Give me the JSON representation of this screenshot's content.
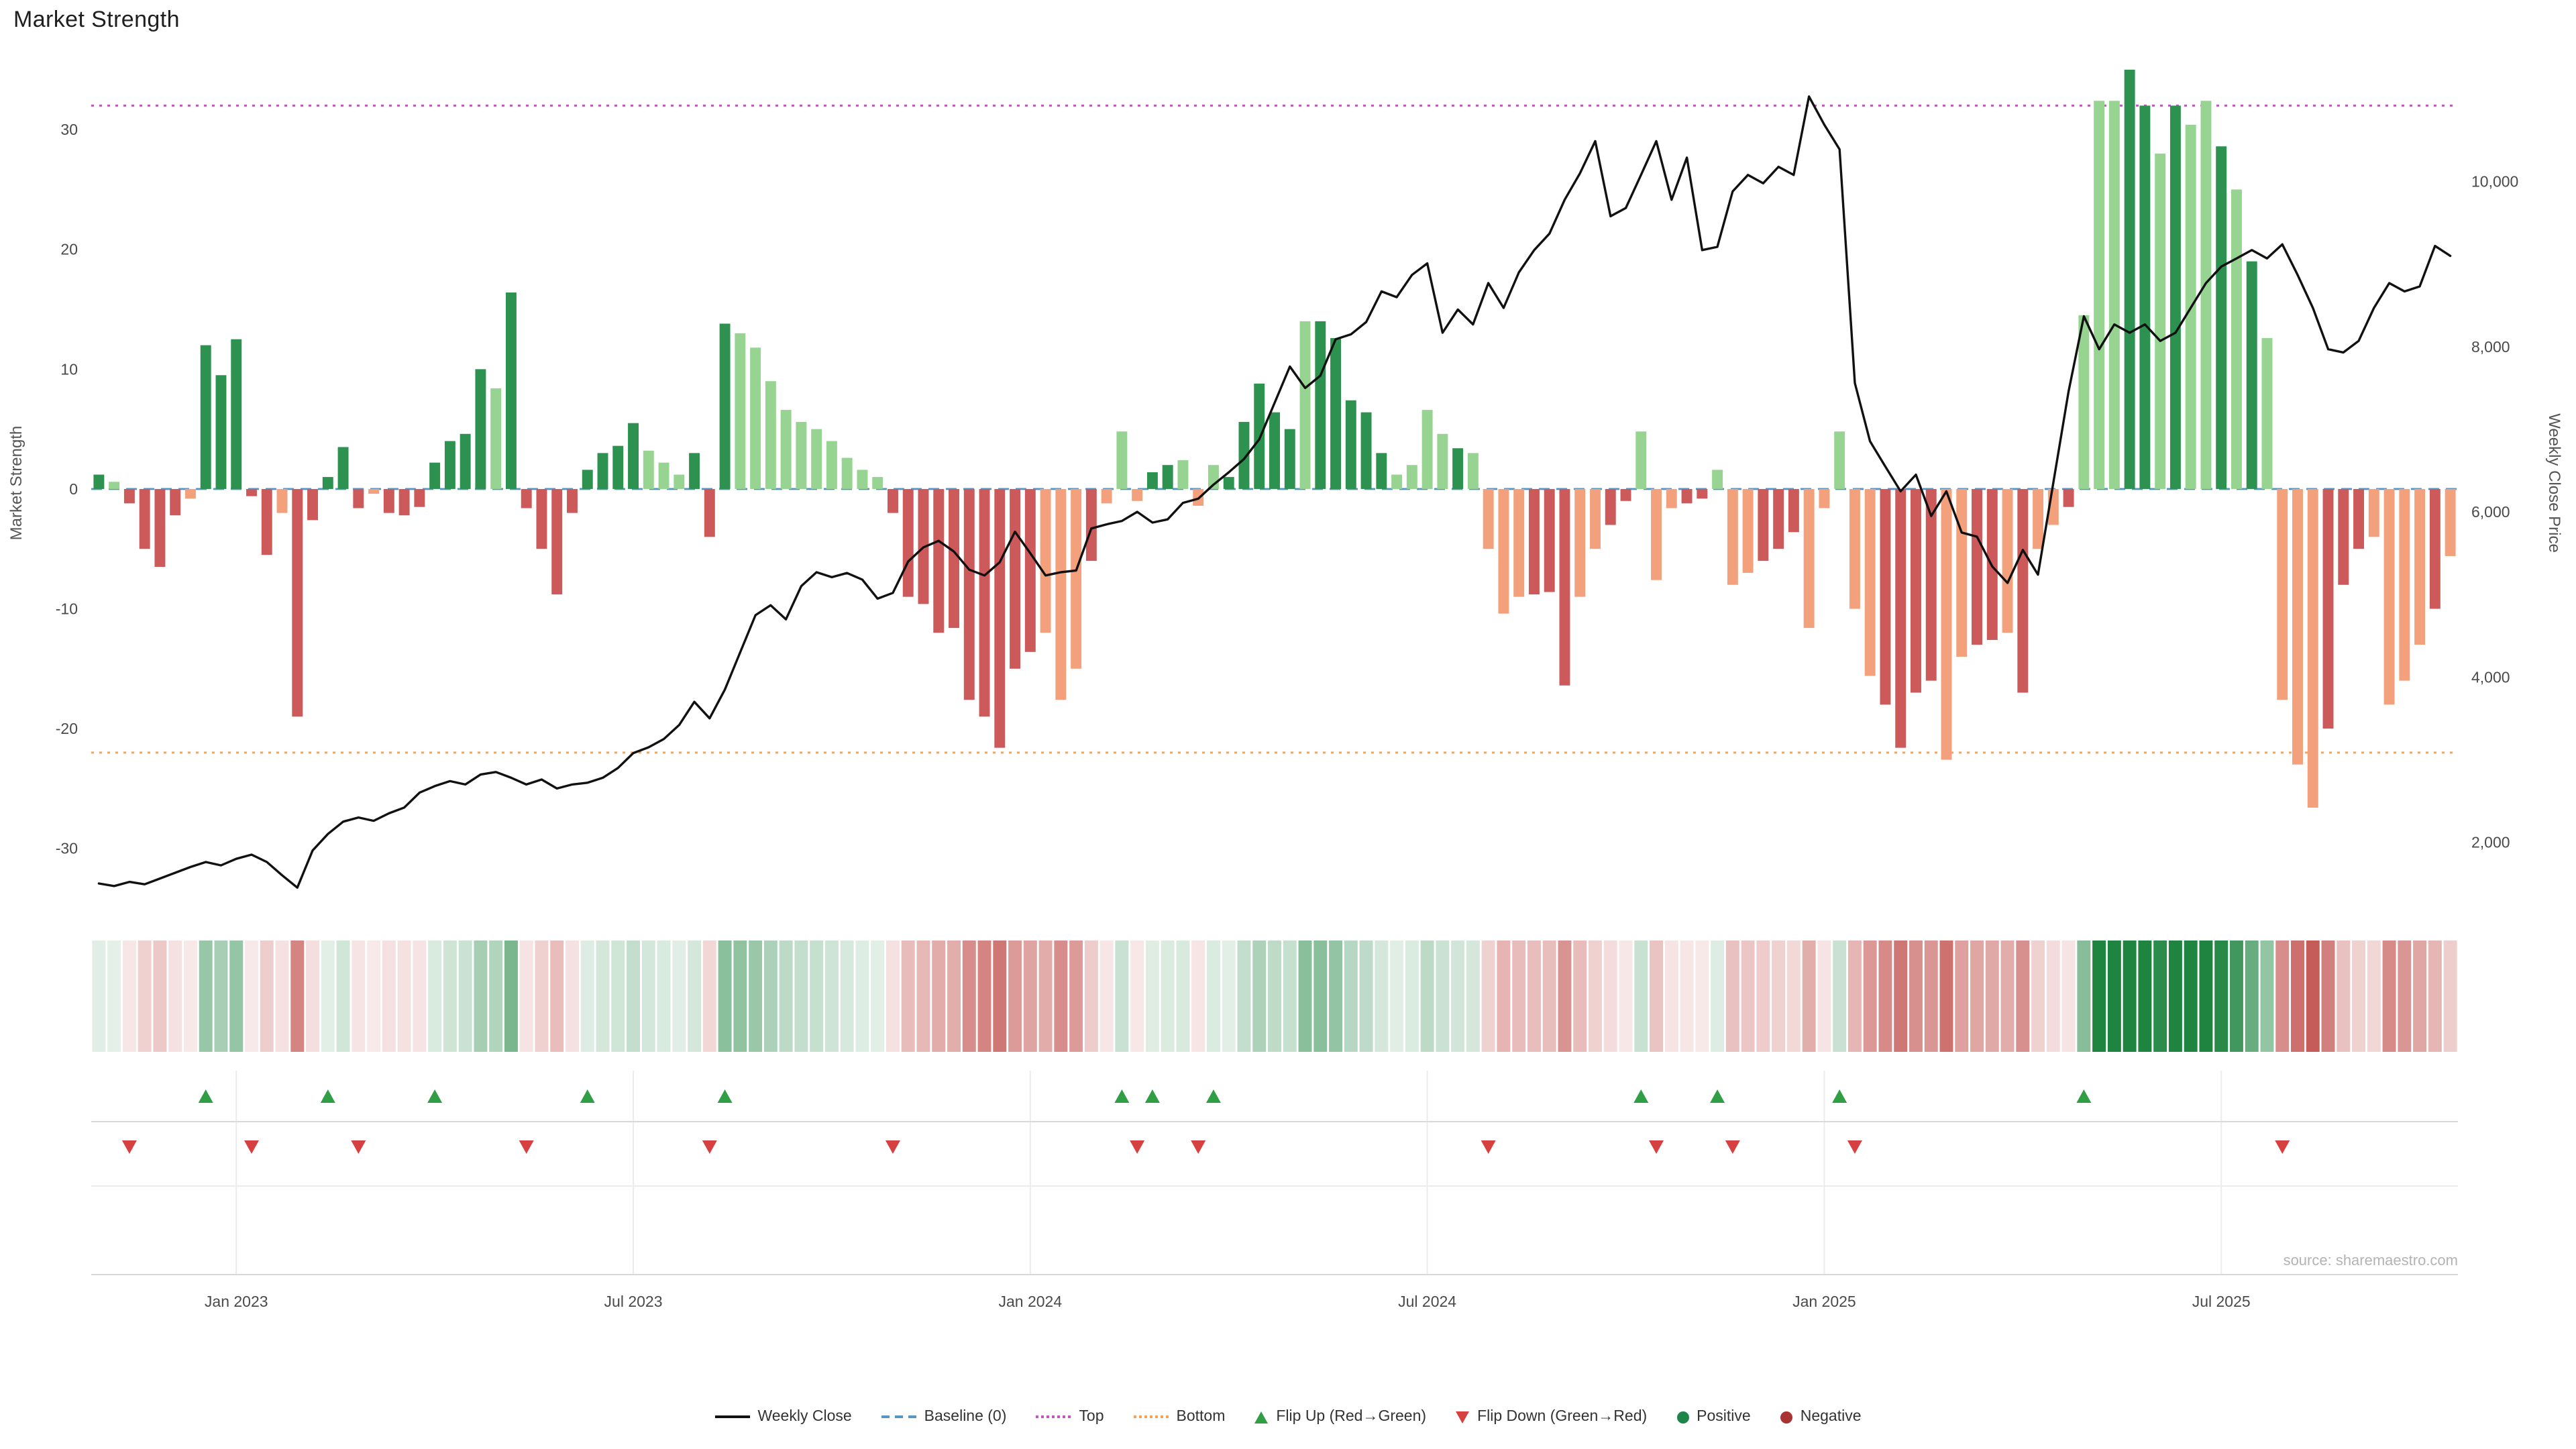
{
  "page": {
    "title": "Market Strength"
  },
  "source_text": "source: sharemaestro.com",
  "colors": {
    "bar_pos_dark": "#2d9150",
    "bar_pos_light": "#97d492",
    "bar_neg_dark": "#cc5a5a",
    "bar_neg_light": "#f2a17c",
    "line": "#111111",
    "baseline": "#5596c8",
    "top": "#c653c6",
    "bottom": "#f5a65b",
    "flip_up": "#2f9e44",
    "flip_down": "#d64040",
    "positive_dot": "#1e8449",
    "negative_dot": "#a93232",
    "grid": "#ececec",
    "panel_line": "#d8d8d8",
    "axis_text": "#4a4a4a",
    "heat_pos_rgb": "26,130,60",
    "heat_neg_rgb": "190,70,66"
  },
  "legend": [
    {
      "label": "Weekly Close",
      "glyph": "line",
      "color": "#111111"
    },
    {
      "label": "Baseline (0)",
      "glyph": "dashed",
      "color": "#5596c8"
    },
    {
      "label": "Top",
      "glyph": "dotted",
      "color": "#c653c6"
    },
    {
      "label": "Bottom",
      "glyph": "dotted",
      "color": "#f5a65b"
    },
    {
      "label": "Flip Up (Red→Green)",
      "glyph": "triangle-up",
      "color": "#2f9e44"
    },
    {
      "label": "Flip Down (Green→Red)",
      "glyph": "triangle-down",
      "color": "#d64040"
    },
    {
      "label": "Positive",
      "glyph": "dot",
      "color": "#1e8449"
    },
    {
      "label": "Negative",
      "glyph": "dot",
      "color": "#a93232"
    }
  ],
  "chart_data": {
    "type": "combo",
    "title": "Market Strength",
    "n_weeks": 155,
    "x_ticks": [
      {
        "i": 9,
        "label": "Jan 2023"
      },
      {
        "i": 35,
        "label": "Jul 2023"
      },
      {
        "i": 61,
        "label": "Jan 2024"
      },
      {
        "i": 87,
        "label": "Jul 2024"
      },
      {
        "i": 113,
        "label": "Jan 2025"
      },
      {
        "i": 139,
        "label": "Jul 2025"
      }
    ],
    "axis_left": {
      "label": "Market Strength",
      "ticks": [
        30,
        20,
        10,
        0,
        -10,
        -20,
        -30
      ],
      "range": [
        -35,
        36
      ]
    },
    "axis_right": {
      "label": "Weekly Close Price",
      "ticks": [
        10000,
        8000,
        6000,
        4000,
        2000
      ],
      "range": [
        1200,
        11500
      ]
    },
    "reference_lines": {
      "baseline": 0,
      "top": 32,
      "bottom": -22
    },
    "legend_position": "bottom",
    "series": [
      {
        "name": "Market Strength",
        "type": "bar",
        "axis": "left",
        "values": [
          1.2,
          0.6,
          -1.2,
          -5,
          -6.5,
          -2.2,
          -0.8,
          12,
          9.5,
          12.5,
          -0.6,
          -5.5,
          -2,
          -19,
          -2.6,
          1,
          3.5,
          -1.6,
          -0.4,
          -2,
          -2.2,
          -1.5,
          2.2,
          4,
          4.6,
          10,
          8.4,
          16.4,
          -1.6,
          -5,
          -8.8,
          -2,
          1.6,
          3,
          3.6,
          5.5,
          3.2,
          2.2,
          1.2,
          3,
          -4,
          13.8,
          13,
          11.8,
          9,
          6.6,
          5.6,
          5,
          4,
          2.6,
          1.6,
          1,
          -2,
          -9,
          -9.6,
          -12,
          -11.6,
          -17.6,
          -19,
          -21.6,
          -15,
          -13.6,
          -12,
          -17.6,
          -15,
          -6,
          -1.2,
          4.8,
          -1,
          1.4,
          2,
          2.4,
          -1.4,
          2,
          1,
          5.6,
          8.8,
          6.4,
          5,
          14,
          14,
          12.6,
          7.4,
          6.4,
          3,
          1.2,
          2,
          6.6,
          4.6,
          3.4,
          3,
          -5,
          -10.4,
          -9,
          -8.8,
          -8.6,
          -16.4,
          -9,
          -5,
          -3,
          -1,
          4.8,
          -7.6,
          -1.6,
          -1.2,
          -0.8,
          1.6,
          -8,
          -7,
          -6,
          -5,
          -3.6,
          -11.6,
          -1.6,
          4.8,
          -10,
          -15.6,
          -18,
          -21.6,
          -17,
          -16,
          -22.6,
          -14,
          -13,
          -12.6,
          -12,
          -17,
          -5,
          -3,
          -1.5,
          14.5,
          32.4,
          32.4,
          35,
          32,
          28,
          32,
          30.4,
          32.4,
          28.6,
          25,
          19,
          12.6,
          -17.6,
          -23,
          -26.6,
          -20,
          -8,
          -5,
          -4,
          -18,
          -16,
          -13,
          -10,
          -5.6
        ]
      },
      {
        "name": "Weekly Close",
        "type": "line",
        "axis": "right",
        "values": [
          1500,
          1470,
          1520,
          1490,
          1560,
          1630,
          1700,
          1760,
          1720,
          1800,
          1850,
          1760,
          1600,
          1450,
          1900,
          2100,
          2250,
          2300,
          2260,
          2350,
          2420,
          2600,
          2680,
          2740,
          2700,
          2820,
          2850,
          2780,
          2700,
          2760,
          2650,
          2700,
          2720,
          2780,
          2900,
          3080,
          3150,
          3250,
          3420,
          3700,
          3500,
          3850,
          4300,
          4750,
          4870,
          4700,
          5100,
          5270,
          5210,
          5260,
          5180,
          4950,
          5020,
          5400,
          5570,
          5650,
          5520,
          5300,
          5230,
          5390,
          5760,
          5500,
          5230,
          5270,
          5290,
          5800,
          5850,
          5890,
          6000,
          5870,
          5910,
          6110,
          6160,
          6330,
          6480,
          6640,
          6880,
          7320,
          7760,
          7500,
          7650,
          8090,
          8150,
          8300,
          8670,
          8600,
          8870,
          9010,
          8170,
          8450,
          8270,
          8770,
          8470,
          8900,
          9170,
          9370,
          9780,
          10100,
          10490,
          9580,
          9680,
          10080,
          10490,
          9780,
          10290,
          9170,
          9210,
          9880,
          10080,
          9980,
          10180,
          10080,
          11030,
          10690,
          10390,
          7560,
          6855,
          6550,
          6250,
          6450,
          5950,
          6250,
          5750,
          5700,
          5340,
          5140,
          5540,
          5240,
          6350,
          7460,
          8370,
          7970,
          8270,
          8170,
          8270,
          8070,
          8170,
          8470,
          8770,
          8970,
          9070,
          9170,
          9070,
          9240,
          8870,
          8470,
          7970,
          7930,
          8070,
          8470,
          8770,
          8670,
          8730,
          9220,
          9100
        ]
      }
    ],
    "bar_shade": "dlddddldddddldddddldddddddldddddddddllldddllllllllllddddddddddllldlllddllldddddldddddlllldlllldddllddlllddllldddlllllddddllddldlldlllddldlldldlllldddlllldllld",
    "flip_up_indices": [
      7,
      15,
      22,
      32,
      41,
      67,
      69,
      73,
      101,
      106,
      114,
      130
    ],
    "flip_down_indices": [
      2,
      10,
      17,
      28,
      40,
      52,
      68,
      72,
      91,
      102,
      107,
      115,
      143
    ]
  }
}
